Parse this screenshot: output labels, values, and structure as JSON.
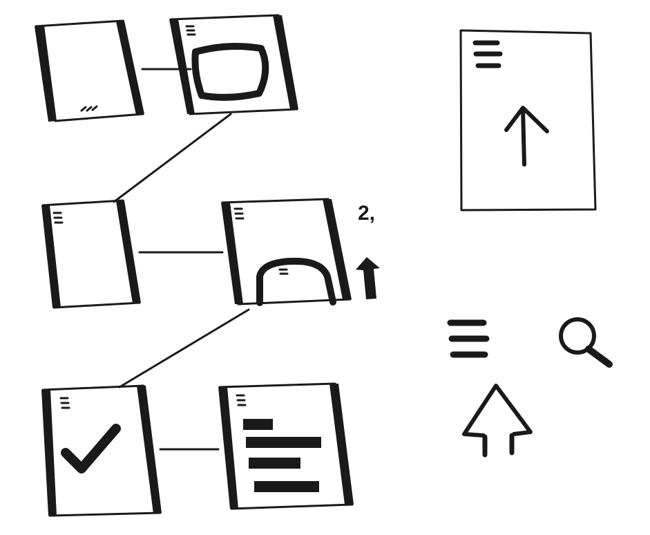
{
  "annotation": "2,"
}
